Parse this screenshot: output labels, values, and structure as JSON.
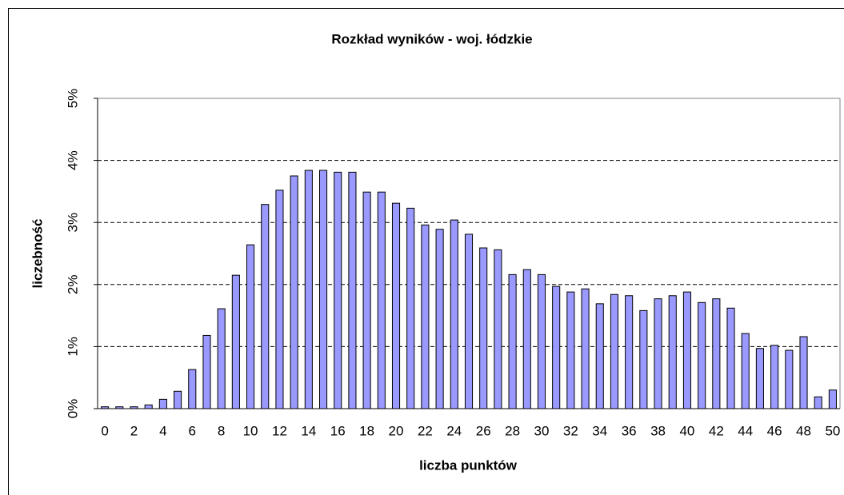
{
  "chart_data": {
    "type": "bar",
    "title": "Rozkład wyników - woj. łódzkie",
    "x_label": "liczba punktów",
    "y_label": "liczebność",
    "categories": [
      "0",
      null,
      "2",
      null,
      "4",
      null,
      "6",
      null,
      "8",
      null,
      "10",
      null,
      "12",
      null,
      "14",
      null,
      "16",
      null,
      "18",
      null,
      "20",
      null,
      "22",
      null,
      "24",
      null,
      "26",
      null,
      "28",
      null,
      "30",
      null,
      "32",
      null,
      "34",
      null,
      "36",
      null,
      "38",
      null,
      "40",
      null,
      "42",
      null,
      "44",
      null,
      "46",
      null,
      "48",
      null,
      "50"
    ],
    "values": [
      0.03,
      0.03,
      0.03,
      0.06,
      0.15,
      0.28,
      0.63,
      1.18,
      1.61,
      2.15,
      2.64,
      3.29,
      3.52,
      3.75,
      3.84,
      3.84,
      3.81,
      3.81,
      3.49,
      3.49,
      3.31,
      3.23,
      2.96,
      2.89,
      3.04,
      2.81,
      2.59,
      2.56,
      2.16,
      2.24,
      2.16,
      1.97,
      1.88,
      1.93,
      1.69,
      1.84,
      1.82,
      1.58,
      1.77,
      1.82,
      1.88,
      1.71,
      1.77,
      1.62,
      1.21,
      0.97,
      1.02,
      0.94,
      1.16,
      0.19,
      0.3
    ],
    "color": "#9999ff",
    "ylim": [
      0,
      5
    ],
    "yticks": [
      {
        "value": 0,
        "label": "0%"
      },
      {
        "value": 1,
        "label": "1%"
      },
      {
        "value": 2,
        "label": "2%"
      },
      {
        "value": 3,
        "label": "3%"
      },
      {
        "value": 4,
        "label": "4%"
      },
      {
        "value": 5,
        "label": "5%"
      }
    ],
    "grid": true
  }
}
